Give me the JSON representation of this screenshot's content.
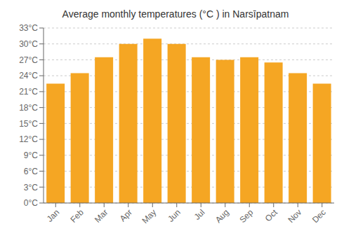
{
  "chart_data": {
    "type": "bar",
    "title": "Average monthly temperatures (°C ) in Narsīpatnam",
    "categories": [
      "Jan",
      "Feb",
      "Mar",
      "Apr",
      "May",
      "Jun",
      "Jul",
      "Aug",
      "Sep",
      "Oct",
      "Nov",
      "Dec"
    ],
    "values": [
      22.5,
      24.5,
      27.5,
      30.0,
      31.0,
      30.0,
      27.5,
      27.0,
      27.5,
      26.5,
      24.5,
      22.5
    ],
    "color": "#F5A623",
    "ylim": [
      0,
      33
    ],
    "yticks": [
      {
        "value": 0,
        "label": "0°C"
      },
      {
        "value": 3,
        "label": "3°C"
      },
      {
        "value": 6,
        "label": "6°C"
      },
      {
        "value": 9,
        "label": "9°C"
      },
      {
        "value": 12,
        "label": "12°C"
      },
      {
        "value": 15,
        "label": "15°C"
      },
      {
        "value": 18,
        "label": "18°C"
      },
      {
        "value": 21,
        "label": "21°C"
      },
      {
        "value": 24,
        "label": "24°C"
      },
      {
        "value": 27,
        "label": "27°C"
      },
      {
        "value": 30,
        "label": "30°C"
      },
      {
        "value": 33,
        "label": "33°C"
      }
    ],
    "grid": true
  }
}
